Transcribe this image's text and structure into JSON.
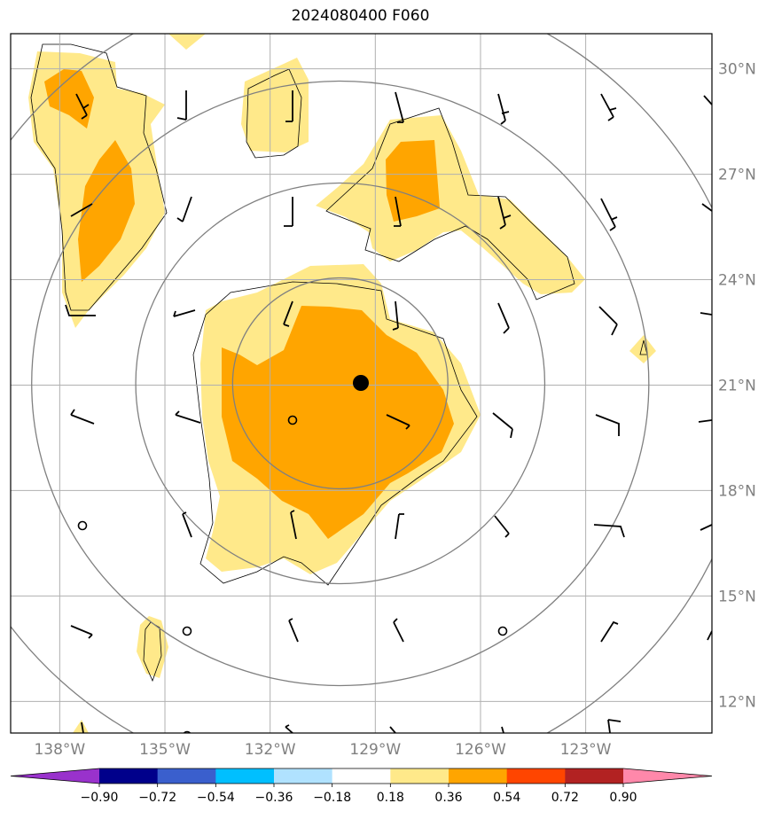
{
  "title": "2024080400 F060",
  "map": {
    "lon_range": [
      -139.4,
      -119.4
    ],
    "lat_range": [
      11.1,
      31.0
    ],
    "lon_ticks": [
      {
        "value": -138,
        "label": "138°W"
      },
      {
        "value": -135,
        "label": "135°W"
      },
      {
        "value": -132,
        "label": "132°W"
      },
      {
        "value": -129,
        "label": "129°W"
      },
      {
        "value": -126,
        "label": "126°W"
      },
      {
        "value": -123,
        "label": "123°W"
      }
    ],
    "lat_ticks": [
      {
        "value": 12,
        "label": "12°N"
      },
      {
        "value": 15,
        "label": "15°N"
      },
      {
        "value": 18,
        "label": "18°N"
      },
      {
        "value": 21,
        "label": "21°N"
      },
      {
        "value": 24,
        "label": "24°N"
      },
      {
        "value": 27,
        "label": "27°N"
      },
      {
        "value": 30,
        "label": "30°N"
      }
    ],
    "grid": true,
    "center": {
      "lon": -130.0,
      "lat": 21.05
    },
    "range_rings_deg": [
      3,
      5.7,
      8.6,
      11.5
    ],
    "colors": {
      "light_yellow": "#ffe98a",
      "orange": "#ffa500",
      "ring": "#808080",
      "grid": "#b0b0b0"
    }
  },
  "colorbar": {
    "levels": [
      "−0.90",
      "−0.72",
      "−0.54",
      "−0.36",
      "−0.18",
      "0.18",
      "0.36",
      "0.54",
      "0.72",
      "0.90"
    ],
    "colors": [
      "#9932cc",
      "#00008b",
      "#3a5fcd",
      "#00bfff",
      "#b0e2ff",
      "#ffffff",
      "#ffe98a",
      "#ffa500",
      "#ff4500",
      "#b22222",
      "#ff88aa"
    ]
  }
}
